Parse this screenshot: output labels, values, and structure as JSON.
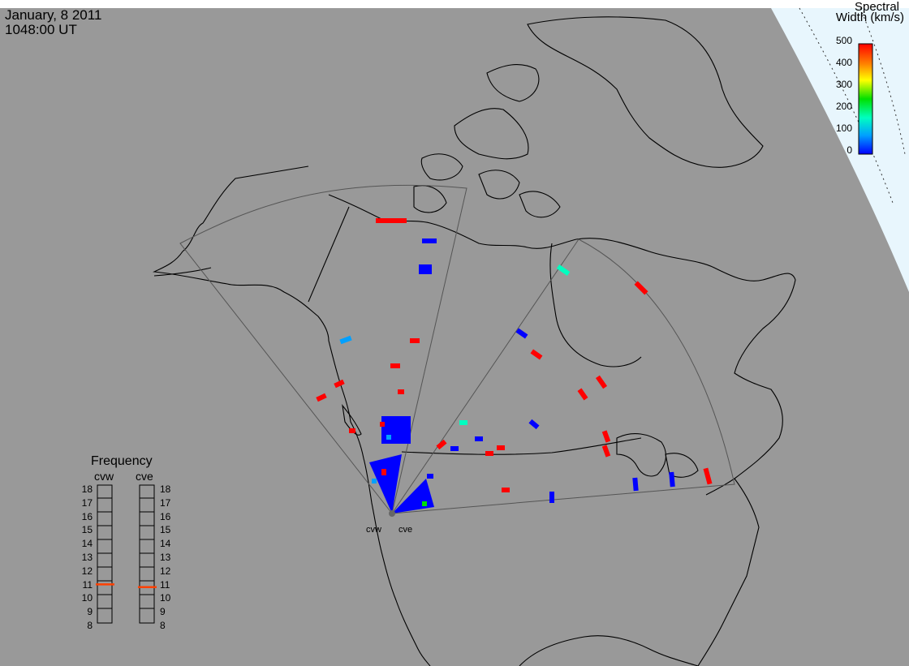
{
  "header": {
    "date": "January, 8 2011",
    "time": "1048:00 UT"
  },
  "colorbar": {
    "title_line1": "Spectral",
    "title_line2": "Width (km/s)",
    "ticks": [
      "500",
      "400",
      "300",
      "200",
      "100",
      "0"
    ],
    "range": [
      0,
      500
    ],
    "colors": [
      "#ff0000",
      "#ffa000",
      "#ffff00",
      "#00e000",
      "#00ffc0",
      "#00a0ff",
      "#0000ff"
    ]
  },
  "frequency_panel": {
    "title": "Frequency",
    "left_label": "cvw",
    "right_label": "cve",
    "ticks": [
      "18",
      "17",
      "16",
      "15",
      "14",
      "13",
      "12",
      "11",
      "10",
      "9",
      "8"
    ],
    "cvw_value_mhz": 10.8,
    "cve_value_mhz": 10.6,
    "marker_color": "#ff4000"
  },
  "radars": {
    "west": "cvw",
    "east": "cve"
  },
  "colors": {
    "background": "#999999",
    "sunlit_region": "#e8f6fd",
    "coastline": "#000000",
    "fov_outline": "#555555"
  }
}
